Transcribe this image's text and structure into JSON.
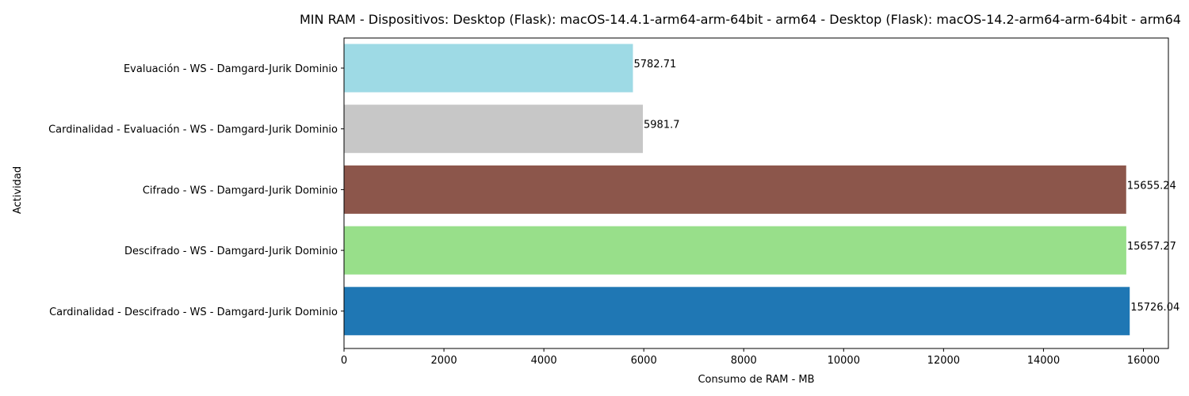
{
  "chart_data": {
    "type": "bar",
    "orientation": "horizontal",
    "title": "MIN RAM - Dispositivos: Desktop (Flask): macOS-14.4.1-arm64-arm-64bit - arm64 - Desktop (Flask): macOS-14.2-arm64-arm-64bit - arm64",
    "xlabel": "Consumo de RAM - MB",
    "ylabel": "Actividad",
    "xlim": [
      0,
      16500
    ],
    "xticks": [
      0,
      2000,
      4000,
      6000,
      8000,
      10000,
      12000,
      14000,
      16000
    ],
    "grid": false,
    "categories": [
      "Evaluación - WS - Damgard-Jurik Dominio",
      "Cardinalidad - Evaluación - WS - Damgard-Jurik Dominio",
      "Cifrado - WS - Damgard-Jurik Dominio",
      "Descifrado - WS - Damgard-Jurik Dominio",
      "Cardinalidad - Descifrado - WS - Damgard-Jurik Dominio"
    ],
    "values": [
      5782.71,
      5981.7,
      15655.24,
      15657.27,
      15726.04
    ],
    "value_labels": [
      "5782.71",
      "5981.7",
      "15655.24",
      "15657.27",
      "15726.04"
    ],
    "colors": [
      "#9edae5",
      "#c7c7c7",
      "#8c564b",
      "#98df8a",
      "#1f77b4"
    ]
  }
}
